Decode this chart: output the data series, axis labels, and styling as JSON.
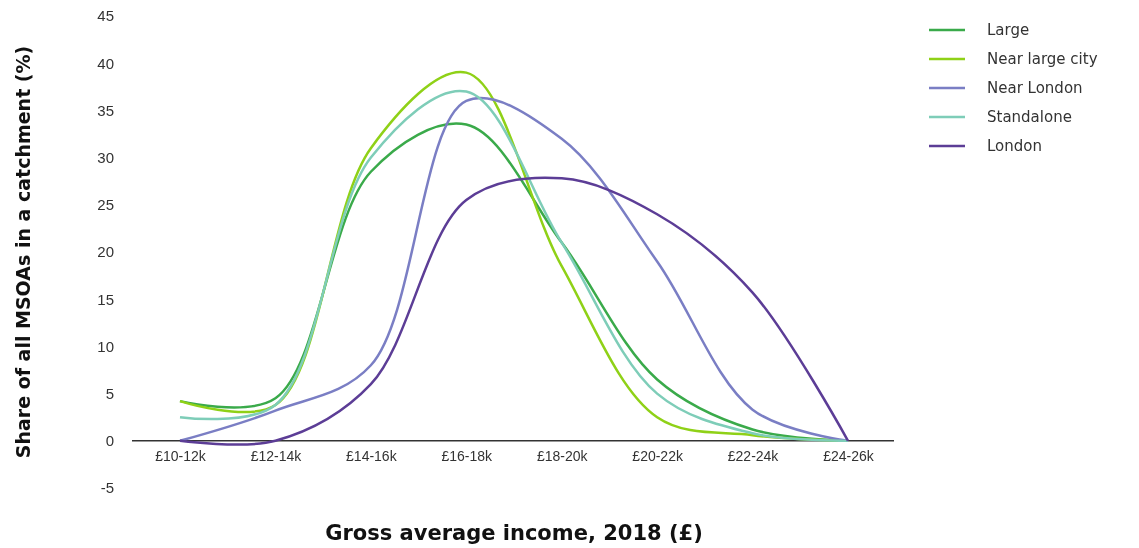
{
  "chart_data": {
    "type": "line",
    "xlabel": "Gross average income, 2018 (£)",
    "ylabel": "Share of all MSOAs in a catchment (%)",
    "categories": [
      "£10-12k",
      "£12-14k",
      "£14-16k",
      "£16-18k",
      "£18-20k",
      "£20-22k",
      "£22-24k",
      "£24-26k"
    ],
    "ylim": [
      -5,
      45
    ],
    "yticks": [
      -5,
      0,
      5,
      10,
      15,
      20,
      25,
      30,
      35,
      40,
      45
    ],
    "grid": false,
    "legend": "top right",
    "marker": "none",
    "line_style": "solid",
    "series": [
      {
        "name": "Large",
        "color": "#3aaa4a",
        "values": [
          4.2,
          4.5,
          28.5,
          33.5,
          21,
          6.5,
          1.2,
          0
        ]
      },
      {
        "name": "Near large city",
        "color": "#8fd117",
        "values": [
          4.2,
          3.8,
          31,
          39,
          18.5,
          2.5,
          0.6,
          0
        ]
      },
      {
        "name": "Near London",
        "color": "#7a7ec4",
        "values": [
          0,
          3.2,
          8,
          36,
          32,
          19,
          3.3,
          0
        ]
      },
      {
        "name": "Standalone",
        "color": "#7ecdb8",
        "values": [
          2.5,
          3.8,
          30,
          37,
          21,
          5,
          0.8,
          0
        ]
      },
      {
        "name": "London",
        "color": "#5c3d96",
        "values": [
          0,
          0,
          6,
          25.5,
          27.8,
          24,
          15.7,
          0
        ]
      }
    ]
  }
}
